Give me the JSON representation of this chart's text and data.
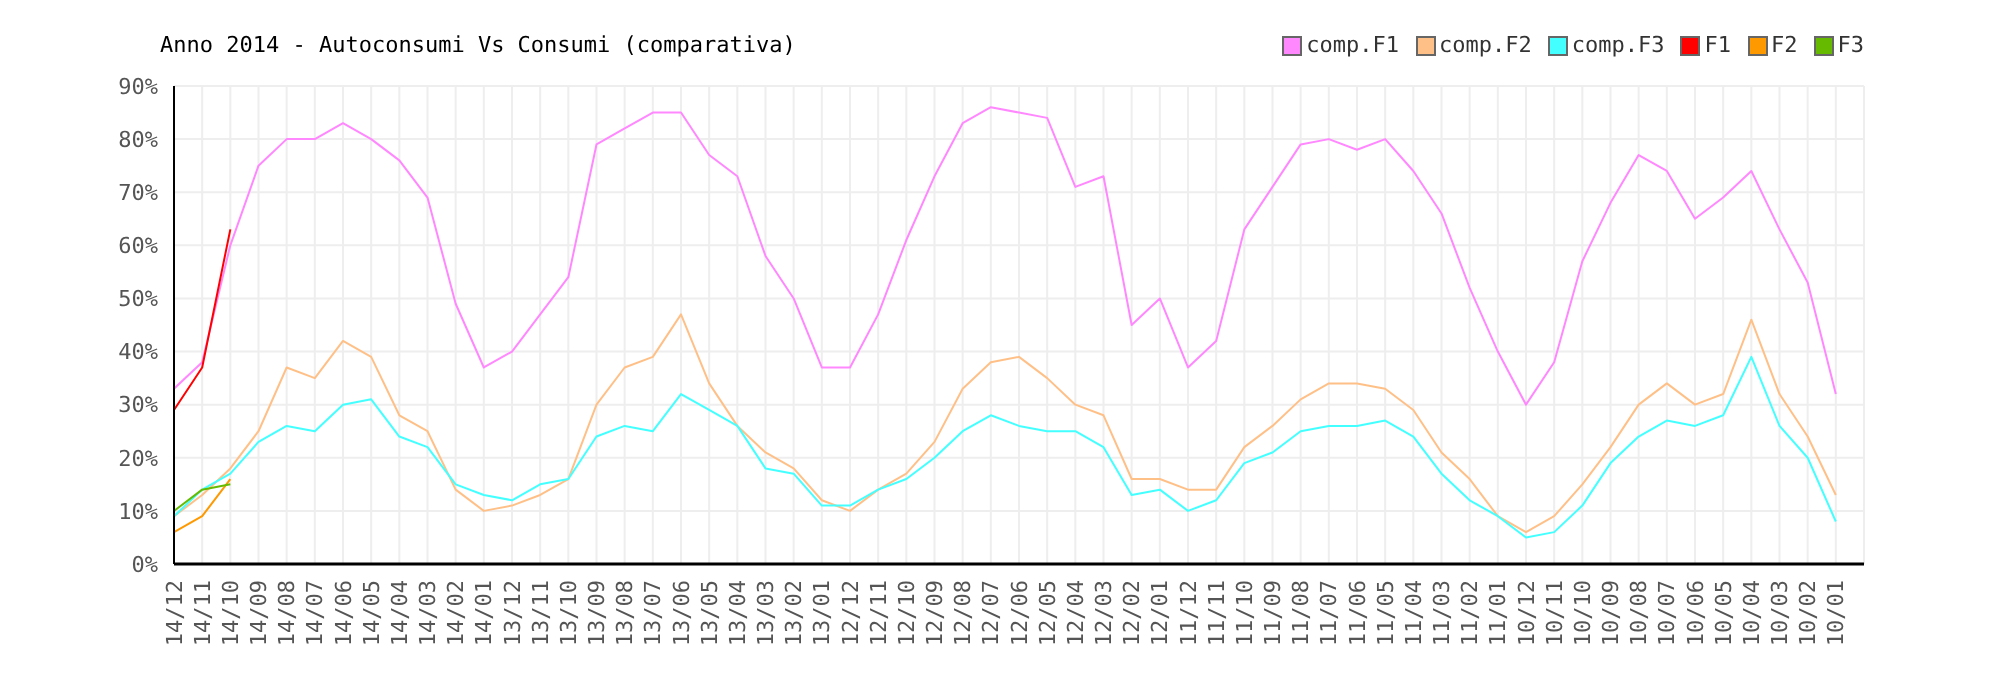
{
  "chart_data": {
    "type": "line",
    "title": "Anno 2014 - Autoconsumi Vs Consumi (comparativa)",
    "categories": [
      "14/12",
      "14/11",
      "14/10",
      "14/09",
      "14/08",
      "14/07",
      "14/06",
      "14/05",
      "14/04",
      "14/03",
      "14/02",
      "14/01",
      "13/12",
      "13/11",
      "13/10",
      "13/09",
      "13/08",
      "13/07",
      "13/06",
      "13/05",
      "13/04",
      "13/03",
      "13/02",
      "13/01",
      "12/12",
      "12/11",
      "12/10",
      "12/09",
      "12/08",
      "12/07",
      "12/06",
      "12/05",
      "12/04",
      "12/03",
      "12/02",
      "12/01",
      "11/12",
      "11/11",
      "11/10",
      "11/09",
      "11/08",
      "11/07",
      "11/06",
      "11/05",
      "11/04",
      "11/03",
      "11/02",
      "11/01",
      "10/12",
      "10/11",
      "10/10",
      "10/09",
      "10/08",
      "10/07",
      "10/06",
      "10/05",
      "10/04",
      "10/03",
      "10/02",
      "10/01"
    ],
    "series": [
      {
        "name": "comp.F1",
        "color": "#ff88ff",
        "values": [
          33,
          38,
          60,
          75,
          80,
          80,
          83,
          80,
          76,
          69,
          49,
          37,
          40,
          47,
          54,
          79,
          82,
          85,
          85,
          77,
          73,
          58,
          50,
          37,
          37,
          47,
          61,
          73,
          83,
          86,
          85,
          84,
          71,
          73,
          45,
          50,
          37,
          42,
          63,
          71,
          79,
          80,
          78,
          80,
          74,
          66,
          52,
          40,
          30,
          38,
          57,
          68,
          77,
          74,
          65,
          69,
          74,
          63,
          53,
          32
        ]
      },
      {
        "name": "comp.F2",
        "color": "#ffc088",
        "values": [
          9,
          13,
          18,
          25,
          37,
          35,
          42,
          39,
          28,
          25,
          14,
          10,
          11,
          13,
          16,
          30,
          37,
          39,
          47,
          34,
          26,
          21,
          18,
          12,
          10,
          14,
          17,
          23,
          33,
          38,
          39,
          35,
          30,
          28,
          16,
          16,
          14,
          14,
          22,
          26,
          31,
          34,
          34,
          33,
          29,
          21,
          16,
          9,
          6,
          9,
          15,
          22,
          30,
          34,
          30,
          32,
          46,
          32,
          24,
          13
        ]
      },
      {
        "name": "comp.F3",
        "color": "#44ffff",
        "values": [
          9,
          14,
          17,
          23,
          26,
          25,
          30,
          31,
          24,
          22,
          15,
          13,
          12,
          15,
          16,
          24,
          26,
          25,
          32,
          29,
          26,
          18,
          17,
          11,
          11,
          14,
          16,
          20,
          25,
          28,
          26,
          25,
          25,
          22,
          13,
          14,
          10,
          12,
          19,
          21,
          25,
          26,
          26,
          27,
          24,
          17,
          12,
          9,
          5,
          6,
          11,
          19,
          24,
          27,
          26,
          28,
          39,
          26,
          20,
          8
        ]
      },
      {
        "name": "F1",
        "color": "#ff0000",
        "values": [
          29,
          37,
          63,
          null,
          null,
          null,
          null,
          null,
          null,
          null,
          null,
          null,
          null,
          null,
          null,
          null,
          null,
          null,
          null,
          null,
          null,
          null,
          null,
          null,
          null,
          null,
          null,
          null,
          null,
          null,
          null,
          null,
          null,
          null,
          null,
          null,
          null,
          null,
          null,
          null,
          null,
          null,
          null,
          null,
          null,
          null,
          null,
          null,
          null,
          null,
          null,
          null,
          null,
          null,
          null,
          null,
          null,
          null,
          null,
          null
        ]
      },
      {
        "name": "F2",
        "color": "#ff9900",
        "values": [
          6,
          9,
          16,
          null,
          null,
          null,
          null,
          null,
          null,
          null,
          null,
          null,
          null,
          null,
          null,
          null,
          null,
          null,
          null,
          null,
          null,
          null,
          null,
          null,
          null,
          null,
          null,
          null,
          null,
          null,
          null,
          null,
          null,
          null,
          null,
          null,
          null,
          null,
          null,
          null,
          null,
          null,
          null,
          null,
          null,
          null,
          null,
          null,
          null,
          null,
          null,
          null,
          null,
          null,
          null,
          null,
          null,
          null,
          null,
          null
        ]
      },
      {
        "name": "F3",
        "color": "#66bb00",
        "values": [
          10,
          14,
          15,
          null,
          null,
          null,
          null,
          null,
          null,
          null,
          null,
          null,
          null,
          null,
          null,
          null,
          null,
          null,
          null,
          null,
          null,
          null,
          null,
          null,
          null,
          null,
          null,
          null,
          null,
          null,
          null,
          null,
          null,
          null,
          null,
          null,
          null,
          null,
          null,
          null,
          null,
          null,
          null,
          null,
          null,
          null,
          null,
          null,
          null,
          null,
          null,
          null,
          null,
          null,
          null,
          null,
          null,
          null,
          null,
          null
        ]
      }
    ],
    "ylim": [
      0,
      90
    ],
    "yticks": [
      {
        "value": 0,
        "label": "0%"
      },
      {
        "value": 10,
        "label": "10%"
      },
      {
        "value": 20,
        "label": "20%"
      },
      {
        "value": 30,
        "label": "30%"
      },
      {
        "value": 40,
        "label": "40%"
      },
      {
        "value": 50,
        "label": "50%"
      },
      {
        "value": 60,
        "label": "60%"
      },
      {
        "value": 70,
        "label": "70%"
      },
      {
        "value": 80,
        "label": "80%"
      },
      {
        "value": 90,
        "label": "90%"
      }
    ],
    "grid": true,
    "legend": "top right",
    "marker": "none",
    "line_style": "solid"
  }
}
